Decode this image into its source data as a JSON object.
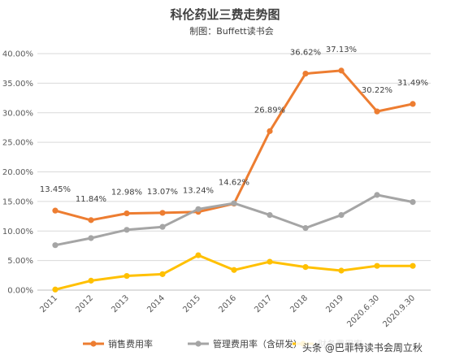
{
  "chart_data": {
    "type": "line",
    "title": "科伦药业三费走势图",
    "subtitle": "制图：Buffett读书会",
    "categories": [
      "2011",
      "2012",
      "2013",
      "2014",
      "2015",
      "2016",
      "2017",
      "2018",
      "2019",
      "2020.6.30",
      "2020.9.30"
    ],
    "ylim": [
      0,
      40
    ],
    "yticks": [
      "0.00%",
      "5.00%",
      "10.00%",
      "15.00%",
      "20.00%",
      "25.00%",
      "30.00%",
      "35.00%",
      "40.00%"
    ],
    "grid": true,
    "legend_position": "bottom",
    "series": [
      {
        "name": "销售费用率",
        "color": "#ED7D31",
        "values": [
          13.45,
          11.84,
          12.98,
          13.07,
          13.24,
          14.62,
          26.89,
          36.62,
          37.13,
          30.22,
          31.49
        ],
        "labels": [
          "13.45%",
          "11.84%",
          "12.98%",
          "13.07%",
          "13.24%",
          "14.62%",
          "26.89%",
          "36.62%",
          "37.13%",
          "30.22%",
          "31.49%"
        ]
      },
      {
        "name": "管理费用率（含研发）",
        "color": "#A5A5A5",
        "values": [
          7.6,
          8.8,
          10.2,
          10.7,
          13.7,
          14.7,
          12.7,
          10.5,
          12.7,
          16.1,
          14.9
        ]
      },
      {
        "name": "财务费用率",
        "color": "#FFC000",
        "values": [
          0.1,
          1.6,
          2.4,
          2.7,
          5.9,
          3.4,
          4.8,
          3.9,
          3.3,
          4.1,
          4.1
        ]
      }
    ]
  },
  "watermark": "头条 @巴菲特读书会周立秋"
}
